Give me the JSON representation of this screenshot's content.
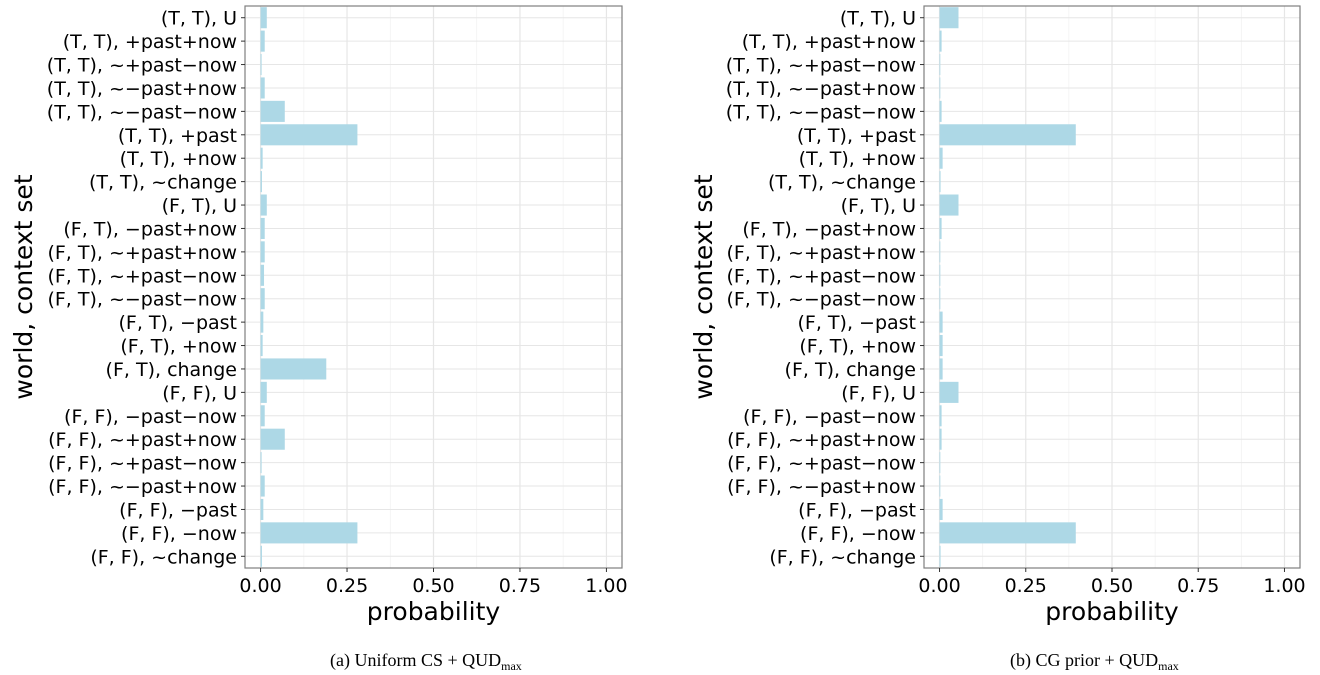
{
  "chart_data": [
    {
      "type": "bar",
      "orientation": "horizontal",
      "categories": [
        "(T, T), U",
        "(T, T), +past+now",
        "(T, T), ~+past−now",
        "(T, T), ~−past+now",
        "(T, T), ~−past−now",
        "(T, T), +past",
        "(T, T), +now",
        "(T, T), ~change",
        "(F, T), U",
        "(F, T), −past+now",
        "(F, T), ~+past+now",
        "(F, T), ~+past−now",
        "(F, T), ~−past−now",
        "(F, T), −past",
        "(F, T), +now",
        "(F, T), change",
        "(F, F), U",
        "(F, F), −past−now",
        "(F, F), ~+past+now",
        "(F, F), ~+past−now",
        "(F, F), ~−past+now",
        "(F, F), −past",
        "(F, F), −now",
        "(F, F), ~change"
      ],
      "values": [
        0.018,
        0.012,
        0.003,
        0.012,
        0.07,
        0.28,
        0.006,
        0.004,
        0.018,
        0.012,
        0.012,
        0.01,
        0.012,
        0.008,
        0.006,
        0.19,
        0.018,
        0.012,
        0.07,
        0.003,
        0.012,
        0.008,
        0.28,
        0.004
      ],
      "xlabel": "probability",
      "ylabel": "world, context set",
      "xlim": [
        0,
        1
      ],
      "xticks": [
        "0.00",
        "0.25",
        "0.50",
        "0.75",
        "1.00"
      ],
      "bar_color": "#add8e6",
      "grid": true,
      "caption": {
        "prefix": "(a)  Uniform CS + QUD",
        "sub": "max"
      }
    },
    {
      "type": "bar",
      "orientation": "horizontal",
      "categories": [
        "(T, T), U",
        "(T, T), +past+now",
        "(T, T), ~+past−now",
        "(T, T), ~−past+now",
        "(T, T), ~−past−now",
        "(T, T), +past",
        "(T, T), +now",
        "(T, T), ~change",
        "(F, T), U",
        "(F, T), −past+now",
        "(F, T), ~+past+now",
        "(F, T), ~+past−now",
        "(F, T), ~−past−now",
        "(F, T), −past",
        "(F, T), +now",
        "(F, T), change",
        "(F, F), U",
        "(F, F), −past−now",
        "(F, F), ~+past+now",
        "(F, F), ~+past−now",
        "(F, F), ~−past+now",
        "(F, F), −past",
        "(F, F), −now",
        "(F, F), ~change"
      ],
      "values": [
        0.055,
        0.006,
        0.002,
        0.002,
        0.006,
        0.395,
        0.009,
        0.003,
        0.055,
        0.006,
        0.002,
        0.002,
        0.002,
        0.009,
        0.009,
        0.009,
        0.055,
        0.006,
        0.006,
        0.002,
        0.002,
        0.009,
        0.395,
        0.003
      ],
      "xlabel": "probability",
      "ylabel": "world, context set",
      "xlim": [
        0,
        1
      ],
      "xticks": [
        "0.00",
        "0.25",
        "0.50",
        "0.75",
        "1.00"
      ],
      "bar_color": "#add8e6",
      "grid": true,
      "caption": {
        "prefix": "(b)  CG prior + QUD",
        "sub": "max"
      }
    }
  ]
}
